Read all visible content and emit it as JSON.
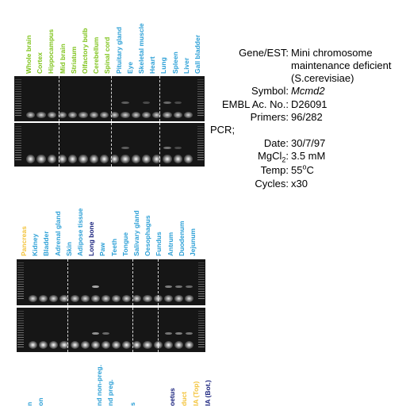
{
  "colors": {
    "green": "#7fc31c",
    "blue": "#2b9fd6",
    "navy": "#1a237e",
    "yellow": "#f3c33a"
  },
  "panel1": {
    "labels": [
      {
        "text": "Whole brain",
        "color": "green"
      },
      {
        "text": "Cortex",
        "color": "green"
      },
      {
        "text": "Hippocampus",
        "color": "green"
      },
      {
        "text": "Mid brain",
        "color": "green"
      },
      {
        "text": "Striatum",
        "color": "green"
      },
      {
        "text": "Olfactory bulb",
        "color": "green"
      },
      {
        "text": "Cerebellum",
        "color": "green"
      },
      {
        "text": "Spinal cord",
        "color": "green"
      },
      {
        "text": "Pituitary gland",
        "color": "blue"
      },
      {
        "text": "Eye",
        "color": "blue"
      },
      {
        "text": "Skeletal muscle",
        "color": "blue"
      },
      {
        "text": "Heart",
        "color": "blue"
      },
      {
        "text": "Lung",
        "color": "blue"
      },
      {
        "text": "Spleen",
        "color": "blue"
      },
      {
        "text": "Liver",
        "color": "blue"
      },
      {
        "text": "Gall bladder",
        "color": "blue"
      }
    ]
  },
  "panel2": {
    "labels": [
      {
        "text": "Pancreas",
        "color": "yellow"
      },
      {
        "text": "Kidney",
        "color": "blue"
      },
      {
        "text": "Bladder",
        "color": "blue"
      },
      {
        "text": "Adrenal gland",
        "color": "blue"
      },
      {
        "text": "Skin",
        "color": "blue"
      },
      {
        "text": "Adipose tissue",
        "color": "blue"
      },
      {
        "text": "Long bone",
        "color": "navy"
      },
      {
        "text": "Paw",
        "color": "blue"
      },
      {
        "text": "Teeth",
        "color": "blue"
      },
      {
        "text": "Tongue",
        "color": "blue"
      },
      {
        "text": "Salivary gland",
        "color": "blue"
      },
      {
        "text": "Oesophagus",
        "color": "blue"
      },
      {
        "text": "Fundus",
        "color": "blue"
      },
      {
        "text": "Antrum",
        "color": "blue"
      },
      {
        "text": "Duodenum",
        "color": "blue"
      },
      {
        "text": "Jejunum",
        "color": "blue"
      }
    ]
  },
  "panel3": {
    "labels": [
      {
        "text": "n",
        "color": "blue"
      },
      {
        "text": "on",
        "color": "blue"
      },
      {
        "text": "nd non-preg.",
        "color": "blue"
      },
      {
        "text": "nd preg.",
        "color": "blue"
      },
      {
        "text": "s",
        "color": "blue"
      },
      {
        "text": "oetus",
        "color": "navy"
      },
      {
        "text": "duct",
        "color": "yellow"
      },
      {
        "text": "IA (Top)",
        "color": "yellow"
      },
      {
        "text": "IA (Bot.)",
        "color": "navy"
      }
    ]
  },
  "info": {
    "gene_key": "Gene/EST:",
    "gene_value_1": "Mini chromosome",
    "gene_value_2": "maintenance deficient",
    "gene_value_3": "(S.cerevisiae)",
    "symbol_key": "Symbol:",
    "symbol_value": "Mcmd2",
    "embl_key": "EMBL Ac. No.:",
    "embl_value": "D26091",
    "primers_key": "Primers:",
    "primers_value": "96/282",
    "pcr_key": "PCR;",
    "date_key": "Date:",
    "date_value": "30/7/97",
    "mgcl_key_a": "MgCl",
    "mgcl_key_sub": "2",
    "mgcl_key_b": ":",
    "mgcl_value": "3.5 mM",
    "temp_key": "Temp:",
    "temp_value_a": "55",
    "temp_value_sup": "o",
    "temp_value_b": "C",
    "cycles_key": "Cycles:",
    "cycles_value": "x30"
  }
}
